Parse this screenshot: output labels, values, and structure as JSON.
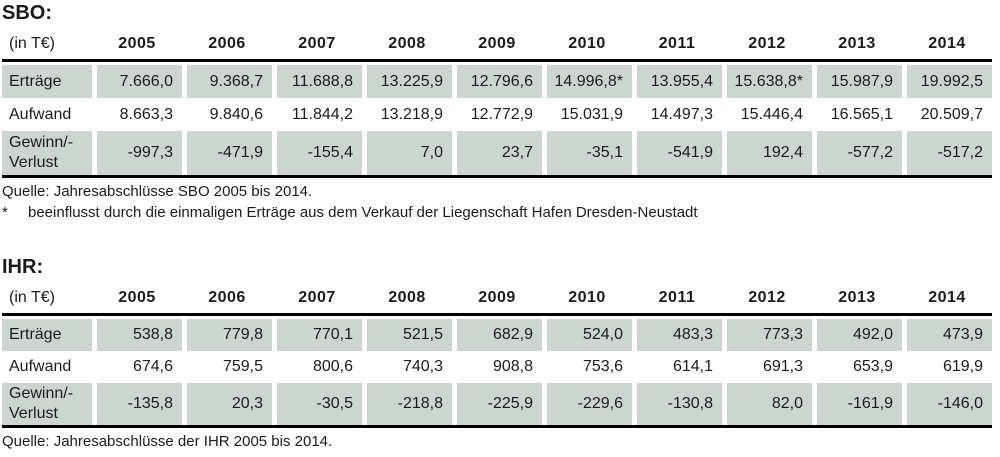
{
  "theme": {
    "shade": "#ccd6d0",
    "rule": "#000000",
    "text": "#1b1b1b",
    "bg": "#ffffff"
  },
  "sections": [
    {
      "id": "sbo",
      "title": "SBO:",
      "unit_label": "(in T€)",
      "years": [
        "2005",
        "2006",
        "2007",
        "2008",
        "2009",
        "2010",
        "2011",
        "2012",
        "2013",
        "2014"
      ],
      "rows": [
        {
          "label": "Erträge",
          "shaded": true,
          "values": [
            "7.666,0",
            "9.368,7",
            "11.688,8",
            "13.225,9",
            "12.796,6",
            "14.996,8*",
            "13.955,4",
            "15.638,8*",
            "15.987,9",
            "19.992,5"
          ]
        },
        {
          "label": "Aufwand",
          "shaded": false,
          "values": [
            "8.663,3",
            "9.840,6",
            "11.844,2",
            "13.218,9",
            "12.772,9",
            "15.031,9",
            "14.497,3",
            "15.446,4",
            "16.565,1",
            "20.509,7"
          ]
        },
        {
          "label": "Gewinn/-Verlust",
          "shaded": true,
          "values": [
            "-997,3",
            "-471,9",
            "-155,4",
            "7,0",
            "23,7",
            "-35,1",
            "-541,9",
            "192,4",
            "-577,2",
            "-517,2"
          ]
        }
      ],
      "source": "Quelle: Jahresabschlüsse SBO 2005 bis 2014.",
      "footnote_marker": "*",
      "footnote": "beeinflusst durch die einmaligen Erträge aus dem Verkauf der Liegenschaft Hafen Dresden-Neustadt"
    },
    {
      "id": "ihr",
      "title": "IHR:",
      "unit_label": "(in T€)",
      "years": [
        "2005",
        "2006",
        "2007",
        "2008",
        "2009",
        "2010",
        "2011",
        "2012",
        "2013",
        "2014"
      ],
      "rows": [
        {
          "label": "Erträge",
          "shaded": true,
          "values": [
            "538,8",
            "779,8",
            "770,1",
            "521,5",
            "682,9",
            "524,0",
            "483,3",
            "773,3",
            "492,0",
            "473,9"
          ]
        },
        {
          "label": "Aufwand",
          "shaded": false,
          "values": [
            "674,6",
            "759,5",
            "800,6",
            "740,3",
            "908,8",
            "753,6",
            "614,1",
            "691,3",
            "653,9",
            "619,9"
          ]
        },
        {
          "label": "Gewinn/-Verlust",
          "shaded": true,
          "values": [
            "-135,8",
            "20,3",
            "-30,5",
            "-218,8",
            "-225,9",
            "-229,6",
            "-130,8",
            "82,0",
            "-161,9",
            "-146,0"
          ]
        }
      ],
      "source": "Quelle: Jahresabschlüsse der IHR 2005 bis 2014."
    }
  ]
}
